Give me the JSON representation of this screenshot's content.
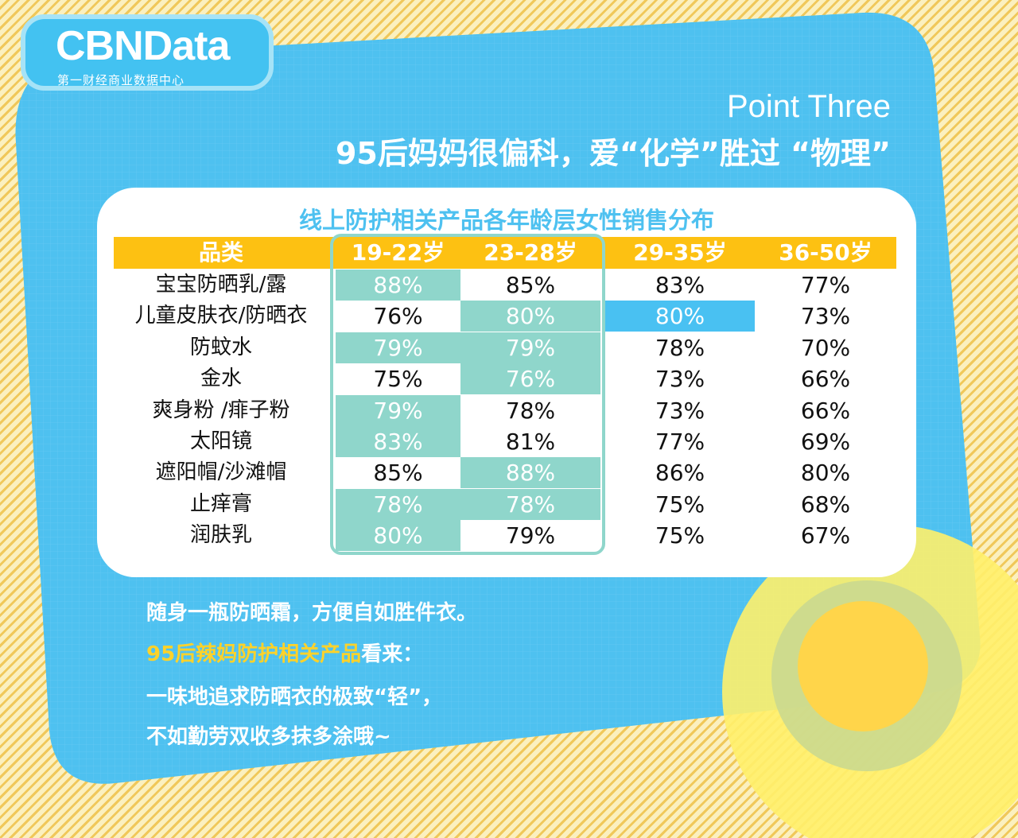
{
  "brand": {
    "logo": "CBNData",
    "tagline": "第一财经商业数据中心"
  },
  "header": {
    "point": "Point Three",
    "title": "95后妈妈很偏科，爱“化学”胜过 “物理”"
  },
  "chart_data": {
    "type": "table",
    "title": "线上防护相关产品各年龄层女性销售分布",
    "columns": [
      "品类",
      "19-22岁",
      "23-28岁",
      "29-35岁",
      "36-50岁"
    ],
    "rows": [
      {
        "category": "宝宝防晒乳/露",
        "values": [
          "88%",
          "85%",
          "83%",
          "77%"
        ],
        "fill": [
          "teal",
          "white",
          "none",
          "none"
        ]
      },
      {
        "category": "儿童皮肤衣/防晒衣",
        "values": [
          "76%",
          "80%",
          "80%",
          "73%"
        ],
        "fill": [
          "white",
          "teal",
          "blue",
          "none"
        ]
      },
      {
        "category": "防蚊水",
        "values": [
          "79%",
          "79%",
          "78%",
          "70%"
        ],
        "fill": [
          "teal",
          "teal",
          "none",
          "none"
        ]
      },
      {
        "category": "金水",
        "values": [
          "75%",
          "76%",
          "73%",
          "66%"
        ],
        "fill": [
          "white",
          "teal",
          "none",
          "none"
        ]
      },
      {
        "category": "爽身粉 /痱子粉",
        "values": [
          "79%",
          "78%",
          "73%",
          "66%"
        ],
        "fill": [
          "teal",
          "white",
          "none",
          "none"
        ]
      },
      {
        "category": "太阳镜",
        "values": [
          "83%",
          "81%",
          "77%",
          "69%"
        ],
        "fill": [
          "teal",
          "white",
          "none",
          "none"
        ]
      },
      {
        "category": "遮阳帽/沙滩帽",
        "values": [
          "85%",
          "88%",
          "86%",
          "80%"
        ],
        "fill": [
          "white",
          "teal",
          "none",
          "none"
        ]
      },
      {
        "category": "止痒膏",
        "values": [
          "78%",
          "78%",
          "75%",
          "68%"
        ],
        "fill": [
          "teal",
          "teal",
          "none",
          "none"
        ]
      },
      {
        "category": "润肤乳",
        "values": [
          "80%",
          "79%",
          "75%",
          "67%"
        ],
        "fill": [
          "teal",
          "white",
          "none",
          "none"
        ]
      }
    ],
    "highlight_columns": [
      "19-22岁",
      "23-28岁"
    ],
    "colors": {
      "header": "#fdc112",
      "teal": "#8fd6cb",
      "blue": "#49c1f2",
      "title": "#4ec1f0"
    }
  },
  "notes": {
    "line1": "随身一瓶防晒霜，方便自如胜件衣。",
    "line2_highlight": "95后辣妈防护相关产品",
    "line2_rest": "看来：",
    "line3": "一味地追求防晒衣的极致“轻”，",
    "line4": "不如勤劳双收多抹多涂哦~"
  },
  "colors": {
    "panel": "#4ec1f0",
    "accent": "#fdd22a",
    "background_stripes": "#f0c85a"
  }
}
